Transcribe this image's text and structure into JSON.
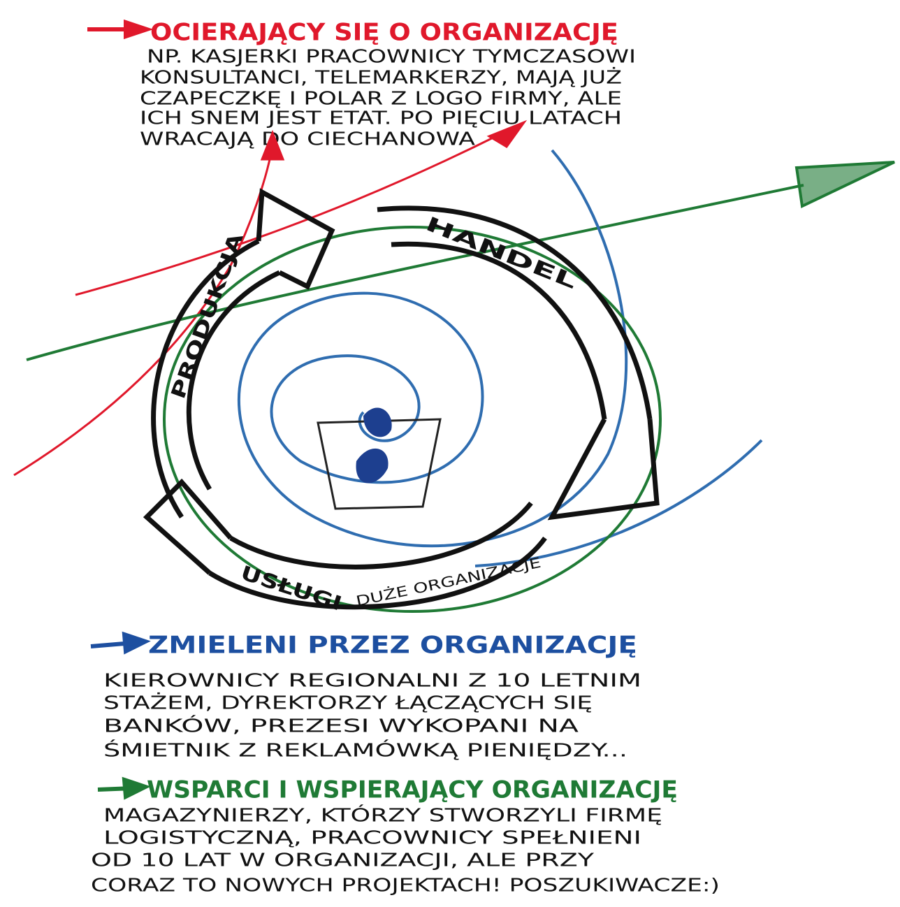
{
  "red_group": {
    "title": "OCIERAJĄCY SIĘ O ORGANIZACJĘ",
    "lines": [
      "NP. KASJERKI PRACOWNICY TYMCZASOWI",
      "KONSULTANCI, TELEMARKERZY, MAJĄ JUŻ",
      "CZAPECZKĘ I POLAR Z LOGO FIRMY, ALE",
      "ICH SNEM JEST ETAT. PO PIĘCIU LATACH",
      "WRACAJĄ DO CIECHANOWA"
    ]
  },
  "cycle": {
    "labels": [
      "PRODUKCJA",
      "HANDEL",
      "USŁUGI",
      "DUŻE ORGANIZACJE"
    ]
  },
  "blue_group": {
    "title": "ZMIELENI PRZEZ ORGANIZACJĘ",
    "lines": [
      "KIEROWNICY REGIONALNI Z 10 LETNIM",
      "STAŻEM, DYREKTORZY ŁĄCZĄCYCH SIĘ",
      "BANKÓW, PREZESI WYKOPANI NA",
      "ŚMIETNIK Z REKLAMÓWKĄ PIENIĘDZY..."
    ]
  },
  "green_group": {
    "title": "WSPARCI I WSPIERAJĄCY ORGANIZACJĘ",
    "lines": [
      "MAGAZYNIERZY, KTÓRZY STWORZYLI FIRMĘ",
      "LOGISTYCZNĄ, PRACOWNICY SPEŁNIENI",
      "OD 10 LAT W ORGANIZACJI, ALE PRZY",
      "CORAZ TO NOWYCH PROJEKTACH! POSZUKIWACZE:)"
    ]
  }
}
